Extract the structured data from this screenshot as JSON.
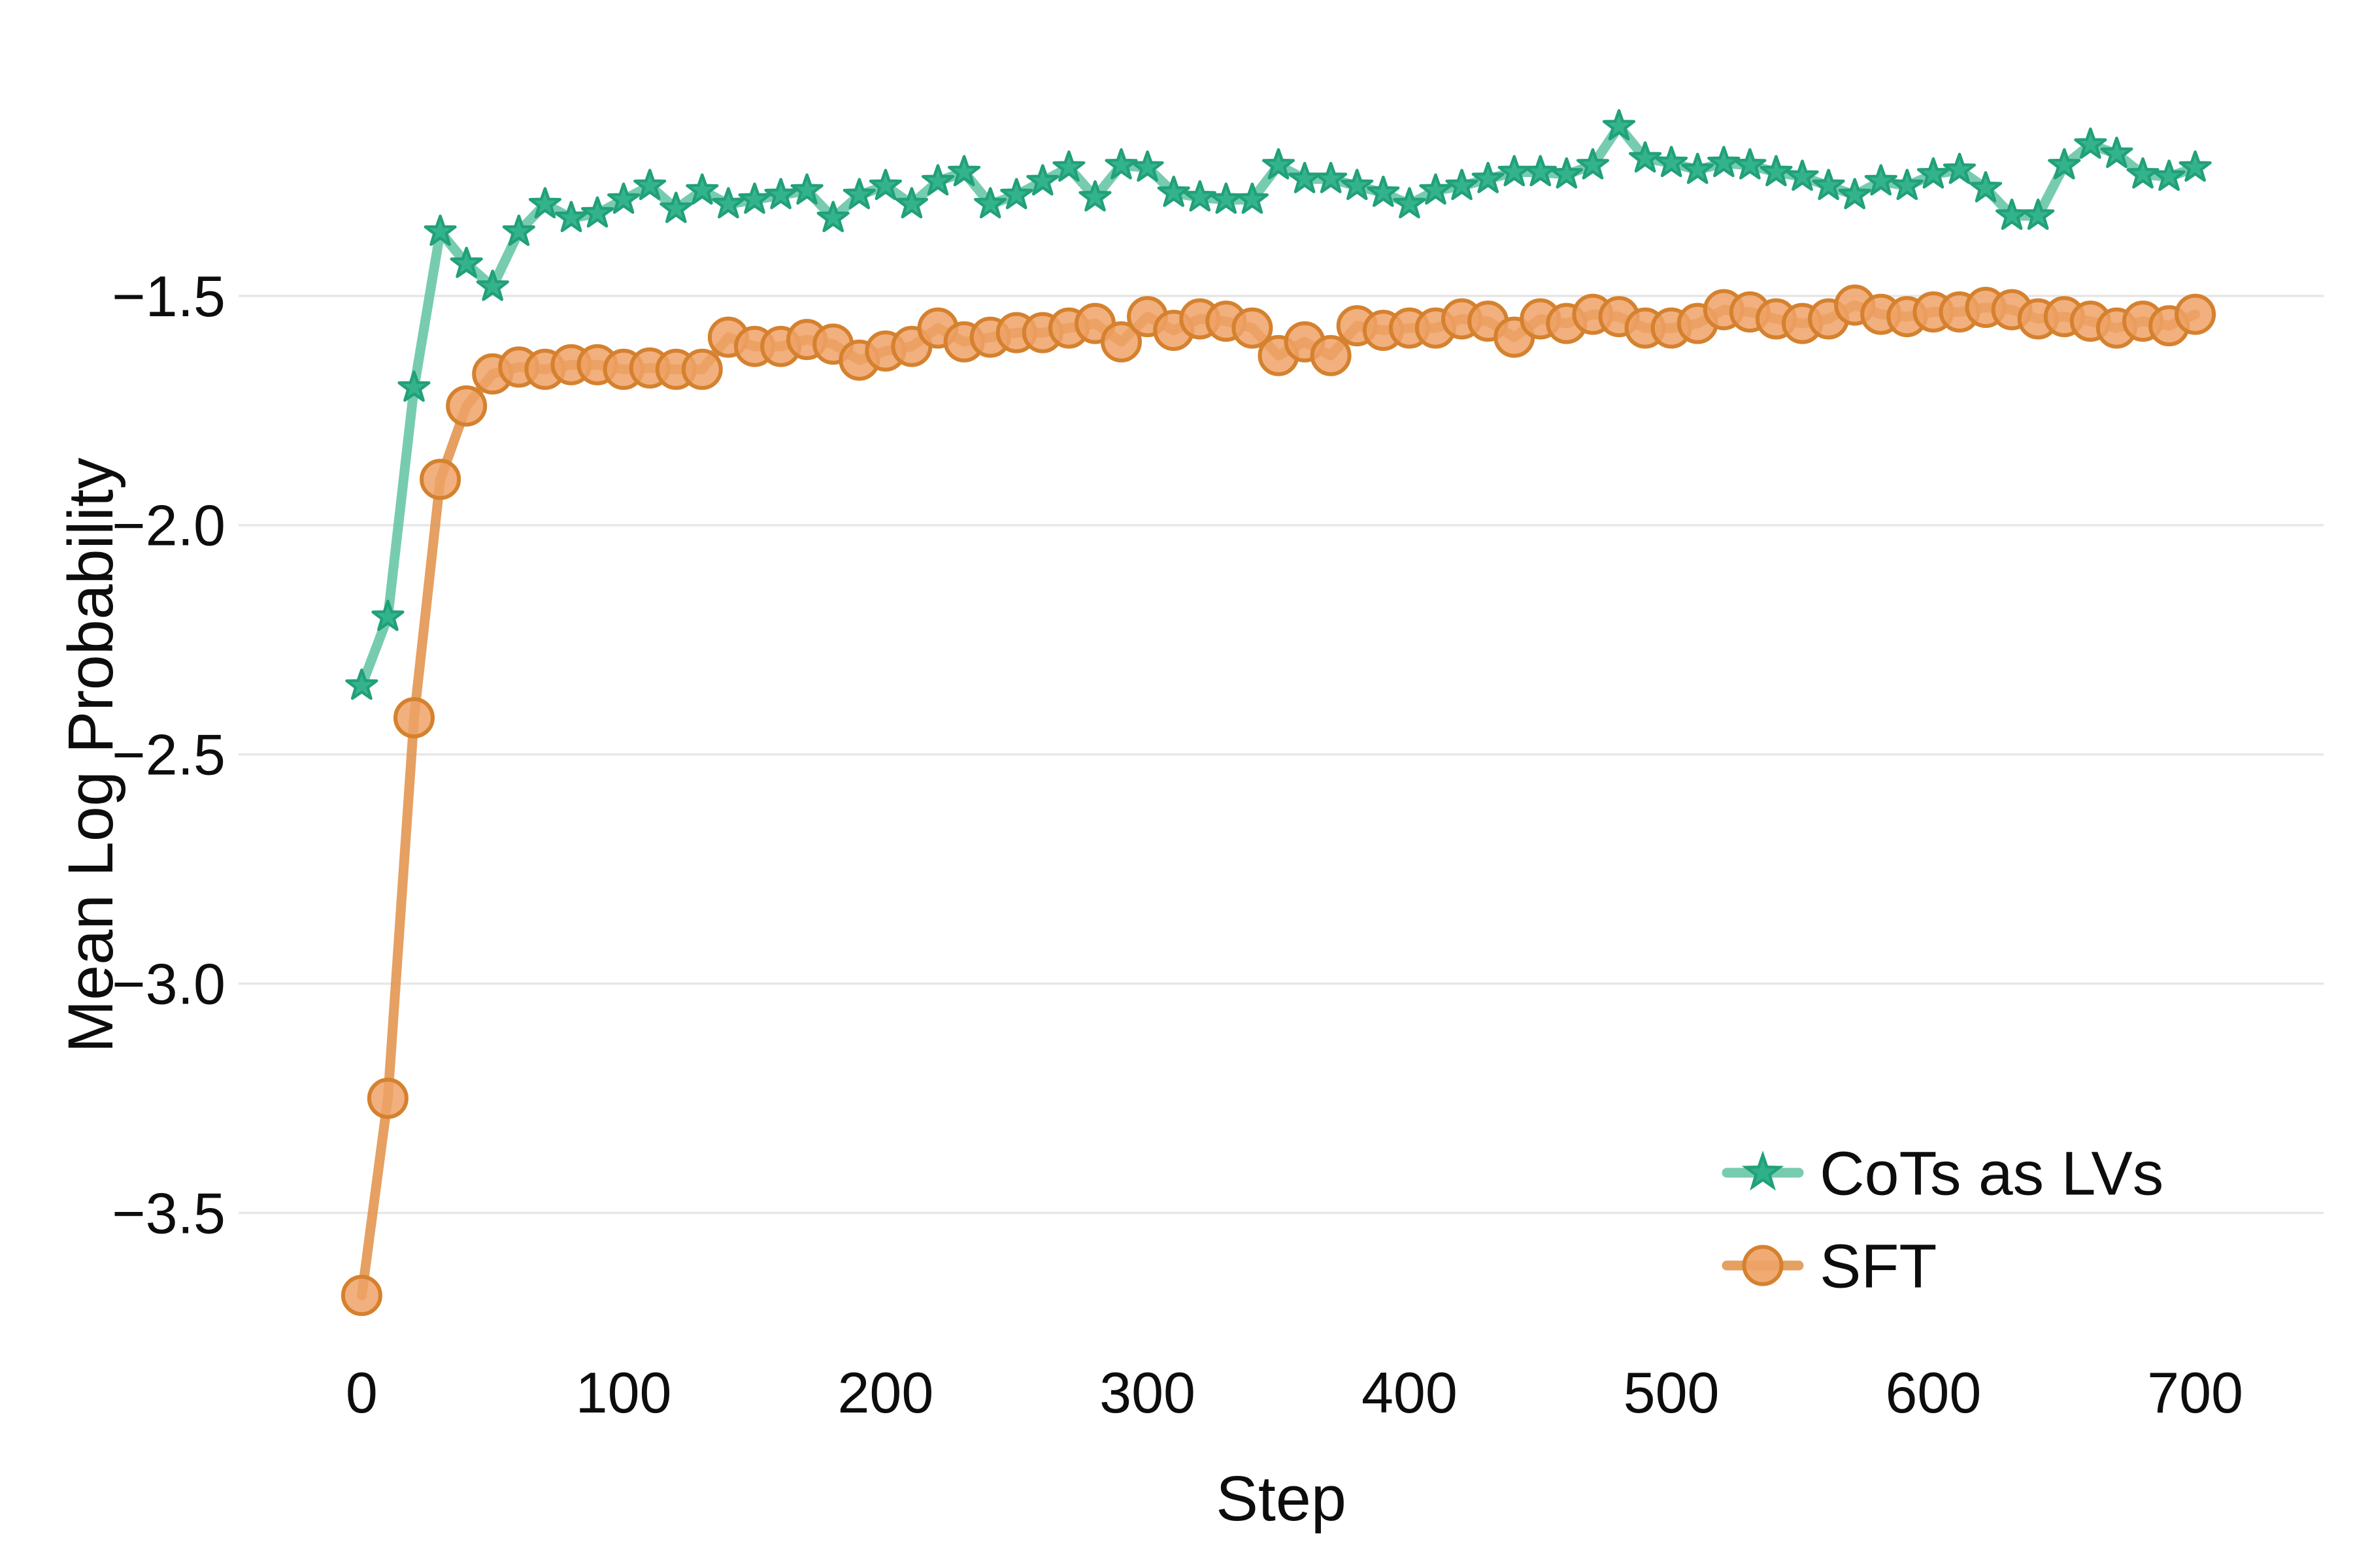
{
  "chart_data": {
    "type": "line",
    "title": "",
    "xlabel": "Step",
    "ylabel": "Mean Log Probability",
    "grid": true,
    "legend_position": "lower right",
    "xlim": [
      -47,
      749
    ],
    "ylim": [
      -3.79,
      -0.94
    ],
    "x_ticks": [
      0,
      100,
      200,
      300,
      400,
      500,
      600,
      700
    ],
    "x_tick_labels": [
      "0",
      "100",
      "200",
      "300",
      "400",
      "500",
      "600",
      "700"
    ],
    "y_ticks": [
      -1.5,
      -2.0,
      -2.5,
      -3.0,
      -3.5
    ],
    "y_tick_labels": [
      "−1.5",
      "−2.0",
      "−2.5",
      "−3.0",
      "−3.5"
    ],
    "grid_color": "#e7e7e7",
    "x": [
      0,
      10,
      20,
      30,
      40,
      50,
      60,
      70,
      80,
      90,
      100,
      110,
      120,
      130,
      140,
      150,
      160,
      170,
      180,
      190,
      200,
      210,
      220,
      230,
      240,
      250,
      260,
      270,
      280,
      290,
      300,
      310,
      320,
      330,
      340,
      350,
      360,
      370,
      380,
      390,
      400,
      410,
      420,
      430,
      440,
      450,
      460,
      470,
      480,
      490,
      500,
      510,
      520,
      530,
      540,
      550,
      560,
      570,
      580,
      590,
      600,
      610,
      620,
      630,
      640,
      650,
      660,
      670,
      680,
      690,
      700
    ],
    "series": [
      {
        "name": "CoTs as LVs",
        "marker": "star",
        "line_color": "#5fc3a1",
        "marker_fill": "#2eb189",
        "marker_edge": "#21a07a",
        "values": [
          -2.35,
          -2.2,
          -1.7,
          -1.36,
          -1.43,
          -1.48,
          -1.36,
          -1.3,
          -1.33,
          -1.32,
          -1.29,
          -1.26,
          -1.31,
          -1.27,
          -1.3,
          -1.29,
          -1.28,
          -1.27,
          -1.33,
          -1.28,
          -1.26,
          -1.3,
          -1.25,
          -1.23,
          -1.3,
          -1.28,
          -1.25,
          -1.22,
          -1.285,
          -1.215,
          -1.22,
          -1.275,
          -1.285,
          -1.29,
          -1.29,
          -1.215,
          -1.245,
          -1.245,
          -1.26,
          -1.275,
          -1.3,
          -1.27,
          -1.26,
          -1.245,
          -1.23,
          -1.23,
          -1.235,
          -1.215,
          -1.13,
          -1.2,
          -1.21,
          -1.225,
          -1.21,
          -1.215,
          -1.23,
          -1.24,
          -1.26,
          -1.28,
          -1.25,
          -1.26,
          -1.235,
          -1.225,
          -1.265,
          -1.325,
          -1.325,
          -1.215,
          -1.17,
          -1.19,
          -1.235,
          -1.24,
          -1.22
        ]
      },
      {
        "name": "SFT",
        "marker": "circle",
        "line_color": "#e08f47",
        "marker_fill": "#eea266",
        "marker_edge": "#d5812e",
        "values": [
          -3.68,
          -3.25,
          -2.42,
          -1.9,
          -1.74,
          -1.67,
          -1.655,
          -1.66,
          -1.65,
          -1.65,
          -1.66,
          -1.657,
          -1.66,
          -1.66,
          -1.59,
          -1.61,
          -1.61,
          -1.595,
          -1.605,
          -1.64,
          -1.62,
          -1.61,
          -1.57,
          -1.6,
          -1.59,
          -1.58,
          -1.58,
          -1.57,
          -1.56,
          -1.6,
          -1.545,
          -1.575,
          -1.55,
          -1.555,
          -1.57,
          -1.63,
          -1.6,
          -1.63,
          -1.565,
          -1.575,
          -1.57,
          -1.57,
          -1.55,
          -1.555,
          -1.59,
          -1.55,
          -1.56,
          -1.54,
          -1.545,
          -1.57,
          -1.57,
          -1.56,
          -1.53,
          -1.535,
          -1.55,
          -1.56,
          -1.55,
          -1.52,
          -1.54,
          -1.545,
          -1.535,
          -1.535,
          -1.525,
          -1.53,
          -1.55,
          -1.545,
          -1.555,
          -1.57,
          -1.555,
          -1.565,
          -1.54
        ]
      }
    ]
  }
}
